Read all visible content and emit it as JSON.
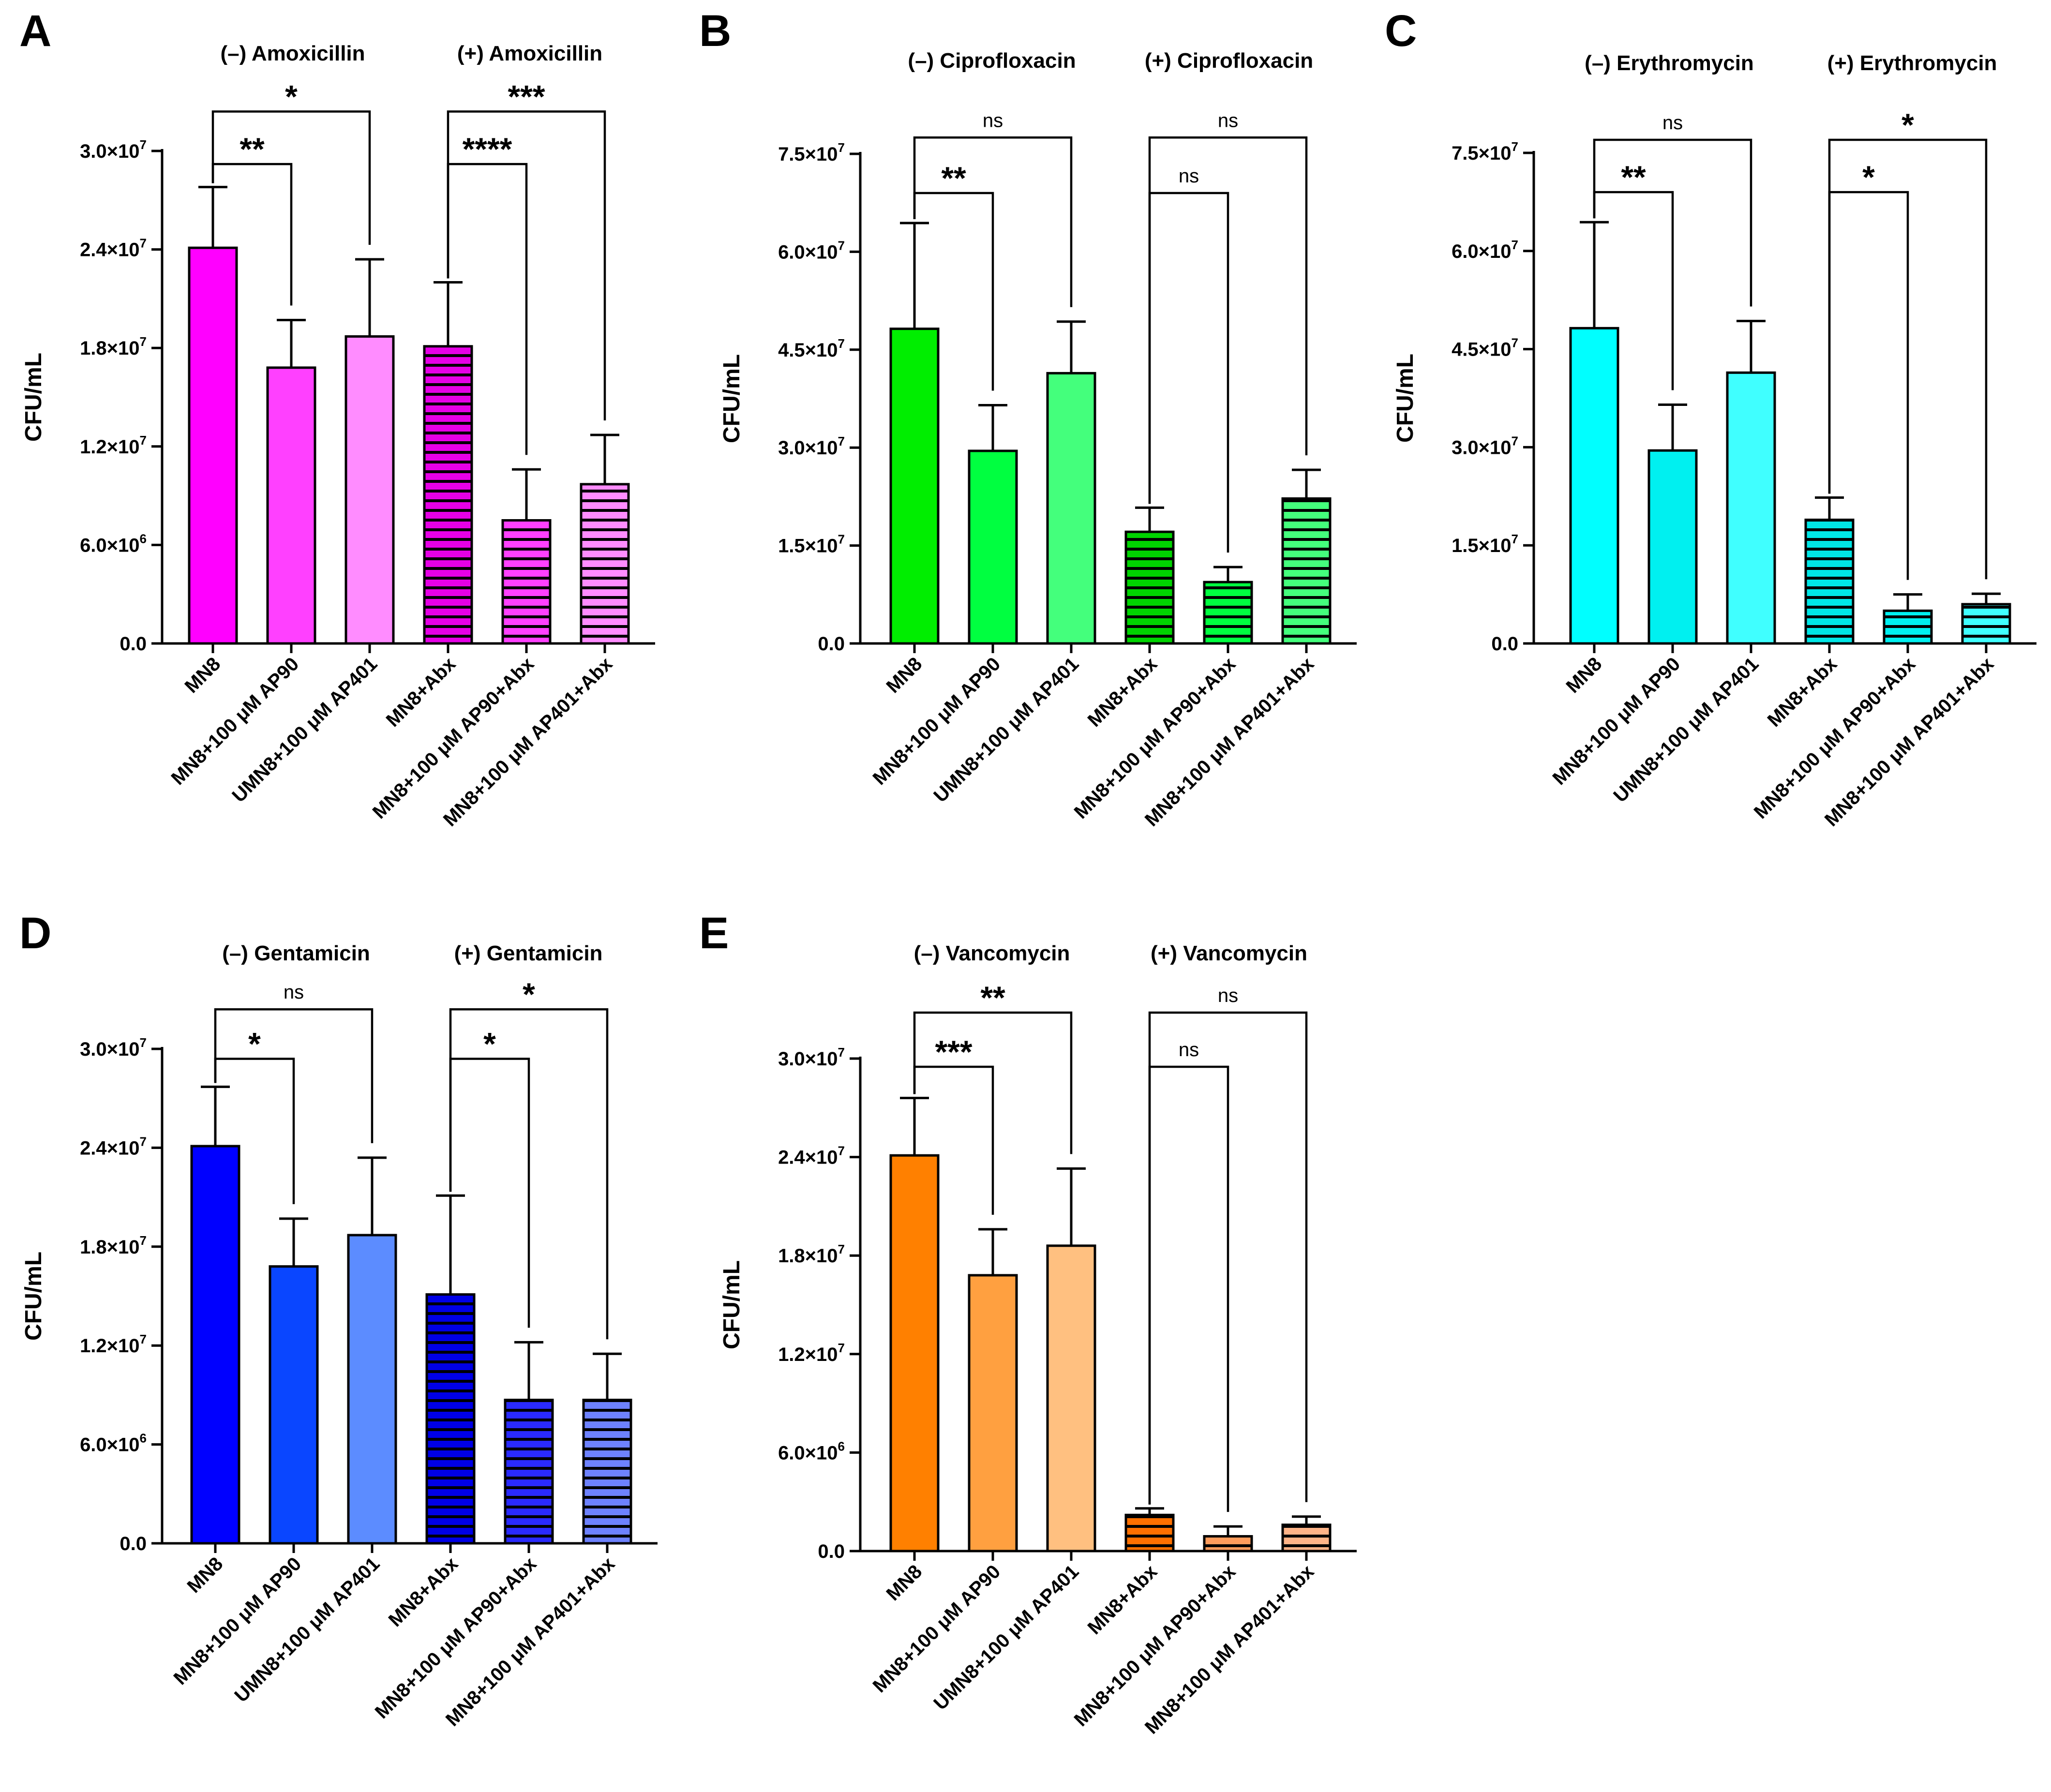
{
  "figure": {
    "category_labels": [
      "MN8",
      "MN8+100 μM AP90",
      "UMN8+100 μM AP401",
      "MN8+Abx",
      "MN8+100 μM AP90+Abx",
      "MN8+100 μM AP401+Abx"
    ]
  },
  "chart_data": [
    {
      "panel": "A",
      "type": "bar",
      "title_left": "(–) Amoxicillin",
      "title_right": "(+) Amoxicillin",
      "ylabel": "CFU/mL",
      "ylim": [
        0,
        30000000
      ],
      "yticks": [
        {
          "value": 0,
          "label": "0.0"
        },
        {
          "value": 6000000,
          "mant": "6.0×10",
          "exp": "6"
        },
        {
          "value": 12000000,
          "mant": "1.2×10",
          "exp": "7"
        },
        {
          "value": 18000000,
          "mant": "1.8×10",
          "exp": "7"
        },
        {
          "value": 24000000,
          "mant": "2.4×10",
          "exp": "7"
        },
        {
          "value": 30000000,
          "mant": "3.0×10",
          "exp": "7"
        }
      ],
      "categories": [
        "MN8",
        "MN8+100 μM AP90",
        "UMN8+100 μM AP401",
        "MN8+Abx",
        "MN8+100 μM AP90+Abx",
        "MN8+100 μM AP401+Abx"
      ],
      "values": [
        24100000,
        16800000,
        18700000,
        18100000,
        7500000,
        9700000
      ],
      "errors": [
        3700000,
        2900000,
        4700000,
        3900000,
        3100000,
        3000000
      ],
      "colors": [
        "#ff00ff",
        "#ff40ff",
        "#ff8cff",
        "#e600e6",
        "#ff40ff",
        "#ff8cff"
      ],
      "hatched": [
        false,
        false,
        false,
        true,
        true,
        true
      ],
      "comparisons": [
        {
          "from": 0,
          "to": 1,
          "label": "**",
          "y": 29200000
        },
        {
          "from": 0,
          "to": 2,
          "label": "*",
          "y": 32400000
        },
        {
          "from": 3,
          "to": 4,
          "label": "****",
          "y": 29200000
        },
        {
          "from": 3,
          "to": 5,
          "label": "***",
          "y": 32400000
        }
      ]
    },
    {
      "panel": "B",
      "type": "bar",
      "title_left": "(–) Ciprofloxacin",
      "title_right": "(+) Ciprofloxacin",
      "ylabel": "CFU/mL",
      "ylim": [
        0,
        75000000
      ],
      "yticks": [
        {
          "value": 0,
          "label": "0.0"
        },
        {
          "value": 15000000,
          "mant": "1.5×10",
          "exp": "7"
        },
        {
          "value": 30000000,
          "mant": "3.0×10",
          "exp": "7"
        },
        {
          "value": 45000000,
          "mant": "4.5×10",
          "exp": "7"
        },
        {
          "value": 60000000,
          "mant": "6.0×10",
          "exp": "7"
        },
        {
          "value": 75000000,
          "mant": "7.5×10",
          "exp": "7"
        }
      ],
      "categories": [
        "MN8",
        "MN8+100 μM AP90",
        "UMN8+100 μM AP401",
        "MN8+Abx",
        "MN8+100 μM AP90+Abx",
        "MN8+100 μM AP401+Abx"
      ],
      "values": [
        48200000,
        29500000,
        41400000,
        17100000,
        9400000,
        22200000
      ],
      "errors": [
        16200000,
        7000000,
        7900000,
        3700000,
        2300000,
        4400000
      ],
      "colors": [
        "#00ee00",
        "#00ff40",
        "#44ff7c",
        "#00d400",
        "#00ff40",
        "#44ff7c"
      ],
      "hatched": [
        false,
        false,
        false,
        true,
        true,
        true
      ],
      "comparisons": [
        {
          "from": 0,
          "to": 1,
          "label": "**",
          "y": 69000000
        },
        {
          "from": 0,
          "to": 2,
          "label": "ns",
          "y": 77500000
        },
        {
          "from": 3,
          "to": 4,
          "label": "ns",
          "y": 69000000
        },
        {
          "from": 3,
          "to": 5,
          "label": "ns",
          "y": 77500000
        }
      ]
    },
    {
      "panel": "C",
      "type": "bar",
      "title_left": "(–) Erythromycin",
      "title_right": "(+) Erythromycin",
      "ylabel": "CFU/mL",
      "ylim": [
        0,
        75000000
      ],
      "yticks": [
        {
          "value": 0,
          "label": "0.0"
        },
        {
          "value": 15000000,
          "mant": "1.5×10",
          "exp": "7"
        },
        {
          "value": 30000000,
          "mant": "3.0×10",
          "exp": "7"
        },
        {
          "value": 45000000,
          "mant": "4.5×10",
          "exp": "7"
        },
        {
          "value": 60000000,
          "mant": "6.0×10",
          "exp": "7"
        },
        {
          "value": 75000000,
          "mant": "7.5×10",
          "exp": "7"
        }
      ],
      "categories": [
        "MN8",
        "MN8+100 μM AP90",
        "UMN8+100 μM AP401",
        "MN8+Abx",
        "MN8+100 μM AP90+Abx",
        "MN8+100 μM AP401+Abx"
      ],
      "values": [
        48200000,
        29500000,
        41400000,
        18900000,
        5000000,
        6000000
      ],
      "errors": [
        16200000,
        7000000,
        7900000,
        3400000,
        2500000,
        1600000
      ],
      "colors": [
        "#00ffff",
        "#00f0f0",
        "#40ffff",
        "#00e6e6",
        "#00f0f0",
        "#40ffff"
      ],
      "hatched": [
        false,
        false,
        false,
        true,
        true,
        true
      ],
      "comparisons": [
        {
          "from": 0,
          "to": 1,
          "label": "**",
          "y": 69000000
        },
        {
          "from": 0,
          "to": 2,
          "label": "ns",
          "y": 77000000
        },
        {
          "from": 3,
          "to": 4,
          "label": "*",
          "y": 69000000
        },
        {
          "from": 3,
          "to": 5,
          "label": "*",
          "y": 77000000
        }
      ]
    },
    {
      "panel": "D",
      "type": "bar",
      "title_left": "(–) Gentamicin",
      "title_right": "(+) Gentamicin",
      "ylabel": "CFU/mL",
      "ylim": [
        0,
        30000000
      ],
      "yticks": [
        {
          "value": 0,
          "label": "0.0"
        },
        {
          "value": 6000000,
          "mant": "6.0×10",
          "exp": "6"
        },
        {
          "value": 12000000,
          "mant": "1.2×10",
          "exp": "7"
        },
        {
          "value": 18000000,
          "mant": "1.8×10",
          "exp": "7"
        },
        {
          "value": 24000000,
          "mant": "2.4×10",
          "exp": "7"
        },
        {
          "value": 30000000,
          "mant": "3.0×10",
          "exp": "7"
        }
      ],
      "categories": [
        "MN8",
        "MN8+100 μM AP90",
        "UMN8+100 μM AP401",
        "MN8+Abx",
        "MN8+100 μM AP90+Abx",
        "MN8+100 μM AP401+Abx"
      ],
      "values": [
        24100000,
        16800000,
        18700000,
        15100000,
        8700000,
        8700000
      ],
      "errors": [
        3600000,
        2900000,
        4700000,
        6000000,
        3500000,
        2800000
      ],
      "colors": [
        "#0000ff",
        "#0a46ff",
        "#5c8cff",
        "#0000e6",
        "#2a2aff",
        "#6e82ff"
      ],
      "hatched": [
        false,
        false,
        false,
        true,
        true,
        true
      ],
      "comparisons": [
        {
          "from": 0,
          "to": 1,
          "label": "*",
          "y": 29400000
        },
        {
          "from": 0,
          "to": 2,
          "label": "ns",
          "y": 32400000
        },
        {
          "from": 3,
          "to": 4,
          "label": "*",
          "y": 29400000
        },
        {
          "from": 3,
          "to": 5,
          "label": "*",
          "y": 32400000
        }
      ]
    },
    {
      "panel": "E",
      "type": "bar",
      "title_left": "(–) Vancomycin",
      "title_right": "(+) Vancomycin",
      "ylabel": "CFU/mL",
      "ylim": [
        0,
        30000000
      ],
      "yticks": [
        {
          "value": 0,
          "label": "0.0"
        },
        {
          "value": 6000000,
          "mant": "6.0×10",
          "exp": "6"
        },
        {
          "value": 12000000,
          "mant": "1.2×10",
          "exp": "7"
        },
        {
          "value": 18000000,
          "mant": "1.8×10",
          "exp": "7"
        },
        {
          "value": 24000000,
          "mant": "2.4×10",
          "exp": "7"
        },
        {
          "value": 30000000,
          "mant": "3.0×10",
          "exp": "7"
        }
      ],
      "categories": [
        "MN8",
        "MN8+100 μM AP90",
        "UMN8+100 μM AP401",
        "MN8+Abx",
        "MN8+100 μM AP90+Abx",
        "MN8+100 μM AP401+Abx"
      ],
      "values": [
        24100000,
        16800000,
        18600000,
        2200000,
        900000,
        1600000
      ],
      "errors": [
        3500000,
        2800000,
        4700000,
        400000,
        600000,
        500000
      ],
      "colors": [
        "#ff8000",
        "#ffa040",
        "#ffc080",
        "#ff7000",
        "#ff9c5c",
        "#ffb488"
      ],
      "hatched": [
        false,
        false,
        false,
        true,
        true,
        true
      ],
      "comparisons": [
        {
          "from": 0,
          "to": 1,
          "label": "***",
          "y": 29500000
        },
        {
          "from": 0,
          "to": 2,
          "label": "**",
          "y": 32800000
        },
        {
          "from": 3,
          "to": 4,
          "label": "ns",
          "y": 29500000
        },
        {
          "from": 3,
          "to": 5,
          "label": "ns",
          "y": 32800000
        }
      ]
    }
  ]
}
